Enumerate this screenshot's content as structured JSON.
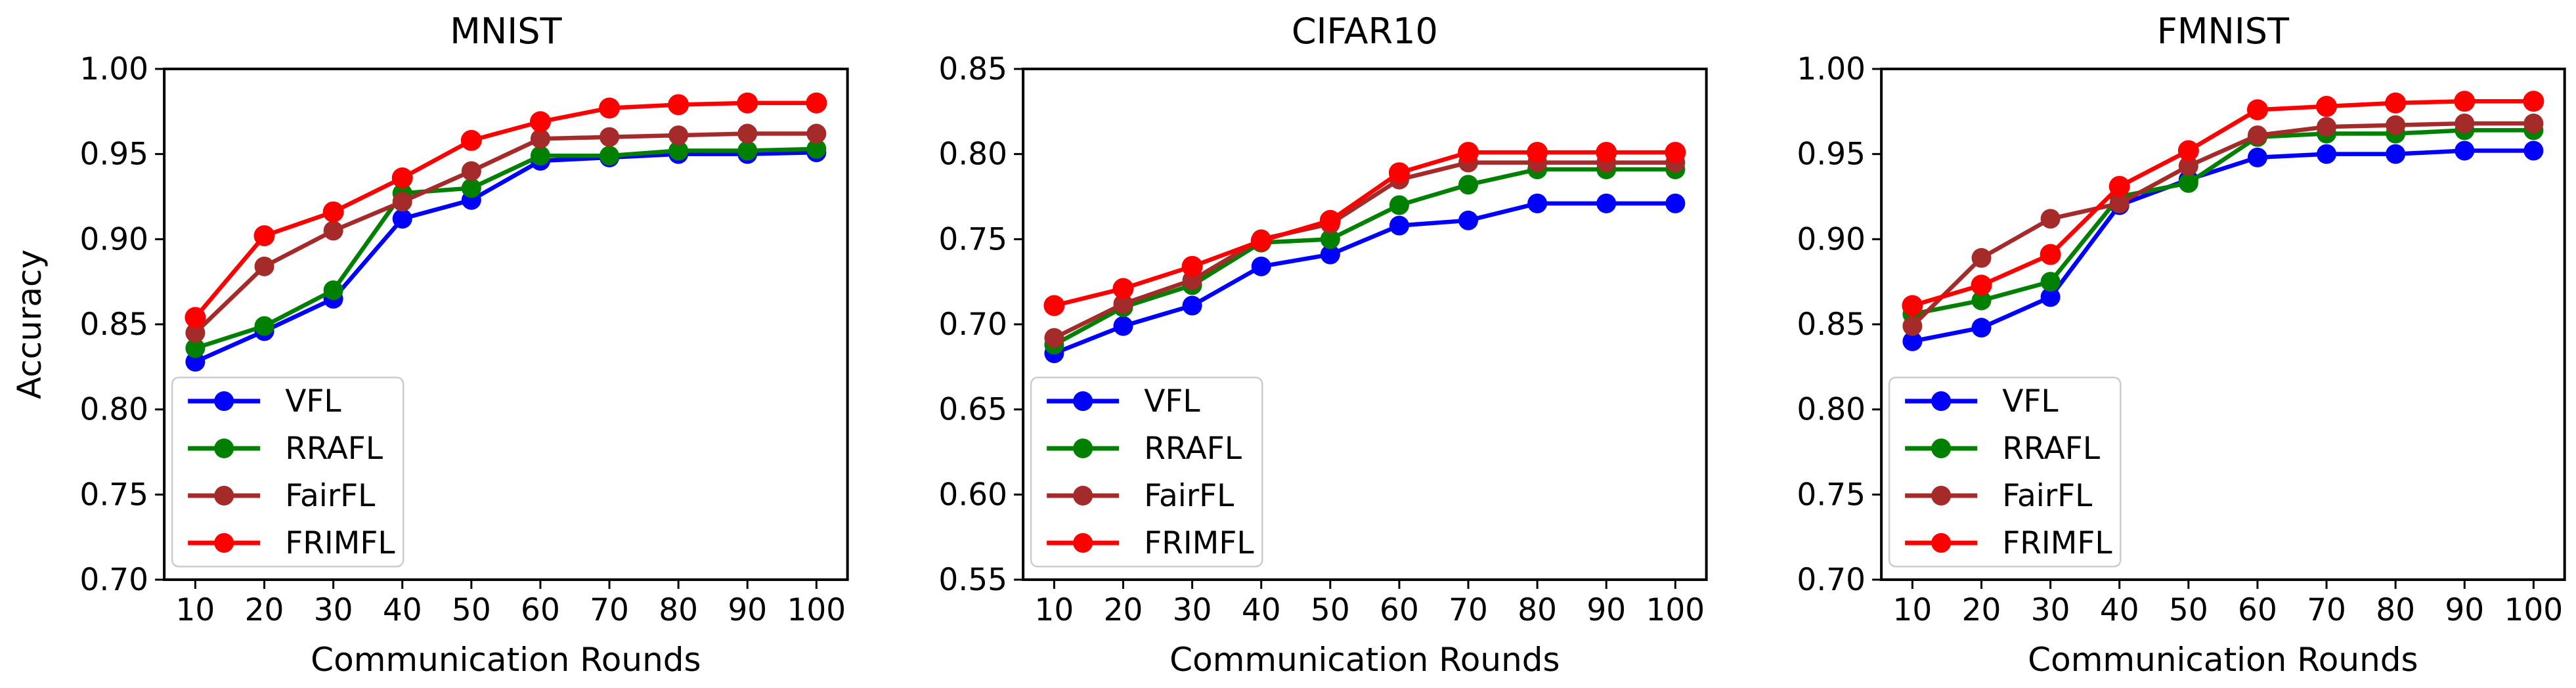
{
  "page": {
    "background": "#ffffff"
  },
  "series_colors": {
    "VFL": "#0000ff",
    "RRAFL": "#008000",
    "FairFL": "#a52a2a",
    "FRIMFL": "#ff0000"
  },
  "chart_data": [
    {
      "type": "line",
      "title": "MNIST",
      "xlabel": "Communication Rounds",
      "ylabel": "Accuracy",
      "grid": false,
      "legend_position": "lower left",
      "legend_labels": [
        "VFL",
        "RRAFL",
        "FairFL",
        "FRIMFL"
      ],
      "x": [
        10,
        20,
        30,
        40,
        50,
        60,
        70,
        80,
        90,
        100
      ],
      "xlim": [
        10,
        100
      ],
      "ylim": [
        0.7,
        1.0
      ],
      "ytick_step": 0.05,
      "series": [
        {
          "name": "VFL",
          "color": "#0000ff",
          "values": [
            0.828,
            0.846,
            0.865,
            0.912,
            0.923,
            0.946,
            0.948,
            0.95,
            0.95,
            0.951
          ]
        },
        {
          "name": "RRAFL",
          "color": "#008000",
          "values": [
            0.836,
            0.849,
            0.87,
            0.927,
            0.93,
            0.949,
            0.949,
            0.952,
            0.952,
            0.953
          ]
        },
        {
          "name": "FairFL",
          "color": "#a52a2a",
          "values": [
            0.845,
            0.884,
            0.905,
            0.922,
            0.94,
            0.959,
            0.96,
            0.961,
            0.962,
            0.962
          ]
        },
        {
          "name": "FRIMFL",
          "color": "#ff0000",
          "values": [
            0.854,
            0.902,
            0.916,
            0.936,
            0.958,
            0.969,
            0.977,
            0.979,
            0.98,
            0.98
          ]
        }
      ]
    },
    {
      "type": "line",
      "title": "CIFAR10",
      "xlabel": "Communication Rounds",
      "grid": false,
      "legend_position": "lower left",
      "legend_labels": [
        "VFL",
        "RRAFL",
        "FairFL",
        "FRIMFL"
      ],
      "x": [
        10,
        20,
        30,
        40,
        50,
        60,
        70,
        80,
        90,
        100
      ],
      "xlim": [
        10,
        100
      ],
      "ylim": [
        0.55,
        0.85
      ],
      "ytick_step": 0.05,
      "series": [
        {
          "name": "VFL",
          "color": "#0000ff",
          "values": [
            0.683,
            0.699,
            0.711,
            0.734,
            0.741,
            0.758,
            0.761,
            0.771,
            0.771,
            0.771
          ]
        },
        {
          "name": "RRAFL",
          "color": "#008000",
          "values": [
            0.688,
            0.71,
            0.723,
            0.748,
            0.75,
            0.77,
            0.782,
            0.791,
            0.791,
            0.791
          ]
        },
        {
          "name": "FairFL",
          "color": "#a52a2a",
          "values": [
            0.692,
            0.712,
            0.726,
            0.75,
            0.759,
            0.785,
            0.795,
            0.795,
            0.795,
            0.795
          ]
        },
        {
          "name": "FRIMFL",
          "color": "#ff0000",
          "values": [
            0.711,
            0.721,
            0.734,
            0.749,
            0.761,
            0.789,
            0.801,
            0.801,
            0.801,
            0.801
          ]
        }
      ]
    },
    {
      "type": "line",
      "title": "FMNIST",
      "xlabel": "Communication Rounds",
      "grid": false,
      "legend_position": "lower left",
      "legend_labels": [
        "VFL",
        "RRAFL",
        "FairFL",
        "FRIMFL"
      ],
      "x": [
        10,
        20,
        30,
        40,
        50,
        60,
        70,
        80,
        90,
        100
      ],
      "xlim": [
        10,
        100
      ],
      "ylim": [
        0.7,
        1.0
      ],
      "ytick_step": 0.05,
      "series": [
        {
          "name": "VFL",
          "color": "#0000ff",
          "values": [
            0.84,
            0.848,
            0.866,
            0.92,
            0.935,
            0.948,
            0.95,
            0.95,
            0.952,
            0.952
          ]
        },
        {
          "name": "RRAFL",
          "color": "#008000",
          "values": [
            0.856,
            0.864,
            0.875,
            0.925,
            0.933,
            0.96,
            0.962,
            0.962,
            0.964,
            0.964
          ]
        },
        {
          "name": "FairFL",
          "color": "#a52a2a",
          "values": [
            0.849,
            0.889,
            0.912,
            0.921,
            0.943,
            0.961,
            0.966,
            0.967,
            0.968,
            0.968
          ]
        },
        {
          "name": "FRIMFL",
          "color": "#ff0000",
          "values": [
            0.861,
            0.873,
            0.891,
            0.931,
            0.952,
            0.976,
            0.978,
            0.98,
            0.981,
            0.981
          ]
        }
      ]
    }
  ]
}
